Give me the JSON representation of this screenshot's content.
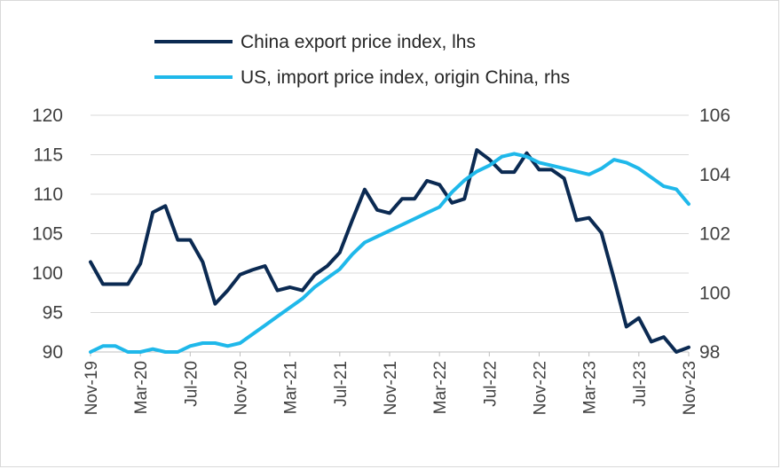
{
  "chart_data": {
    "type": "line",
    "legend_position": "top",
    "grid": true,
    "x": [
      "Nov-19",
      "Dec-19",
      "Jan-20",
      "Feb-20",
      "Mar-20",
      "Apr-20",
      "May-20",
      "Jun-20",
      "Jul-20",
      "Aug-20",
      "Sep-20",
      "Oct-20",
      "Nov-20",
      "Dec-20",
      "Jan-21",
      "Feb-21",
      "Mar-21",
      "Apr-21",
      "May-21",
      "Jun-21",
      "Jul-21",
      "Aug-21",
      "Sep-21",
      "Oct-21",
      "Nov-21",
      "Dec-21",
      "Jan-22",
      "Feb-22",
      "Mar-22",
      "Apr-22",
      "May-22",
      "Jun-22",
      "Jul-22",
      "Aug-22",
      "Sep-22",
      "Oct-22",
      "Nov-22",
      "Dec-22",
      "Jan-23",
      "Feb-23",
      "Mar-23",
      "Apr-23",
      "May-23",
      "Jun-23",
      "Jul-23",
      "Aug-23",
      "Sep-23",
      "Oct-23",
      "Nov-23"
    ],
    "x_tick_labels": [
      "Nov-19",
      "Mar-20",
      "Jul-20",
      "Nov-20",
      "Mar-21",
      "Jul-21",
      "Nov-21",
      "Mar-22",
      "Jul-22",
      "Nov-22",
      "Mar-23",
      "Jul-23",
      "Nov-23"
    ],
    "y_left": {
      "ylim": [
        90,
        120
      ],
      "ticks": [
        "90",
        "95",
        "100",
        "105",
        "110",
        "115",
        "120"
      ]
    },
    "y_right": {
      "ylim": [
        98,
        106
      ],
      "ticks": [
        "98",
        "100",
        "102",
        "104",
        "106"
      ]
    },
    "series": [
      {
        "name": "China export price index, lhs",
        "axis": "left",
        "color": "#0b2a52",
        "values": [
          101.4,
          98.6,
          98.6,
          98.6,
          101.2,
          107.7,
          108.5,
          104.2,
          104.2,
          101.4,
          96.1,
          97.8,
          99.8,
          100.4,
          100.9,
          97.8,
          98.2,
          97.8,
          99.8,
          100.9,
          102.6,
          106.7,
          110.6,
          108.0,
          107.6,
          109.4,
          109.4,
          111.7,
          111.2,
          108.9,
          109.4,
          115.6,
          114.4,
          112.8,
          112.8,
          115.2,
          113.1,
          113.1,
          112.0,
          106.7,
          107.0,
          105.1,
          99.3,
          93.2,
          94.3,
          91.3,
          91.9,
          90.0,
          90.6
        ]
      },
      {
        "name": "US, import price index, origin China, rhs",
        "axis": "right",
        "color": "#1fb8ea",
        "values": [
          98.0,
          98.2,
          98.2,
          98.0,
          98.0,
          98.1,
          98.0,
          98.0,
          98.2,
          98.3,
          98.3,
          98.2,
          98.3,
          98.6,
          98.9,
          99.2,
          99.5,
          99.8,
          100.2,
          100.5,
          100.8,
          101.3,
          101.7,
          101.9,
          102.1,
          102.3,
          102.5,
          102.7,
          102.9,
          103.4,
          103.8,
          104.1,
          104.3,
          104.6,
          104.7,
          104.6,
          104.4,
          104.3,
          104.2,
          104.1,
          104.0,
          104.2,
          104.5,
          104.4,
          104.2,
          103.9,
          103.6,
          103.5,
          103.0
        ]
      }
    ]
  }
}
